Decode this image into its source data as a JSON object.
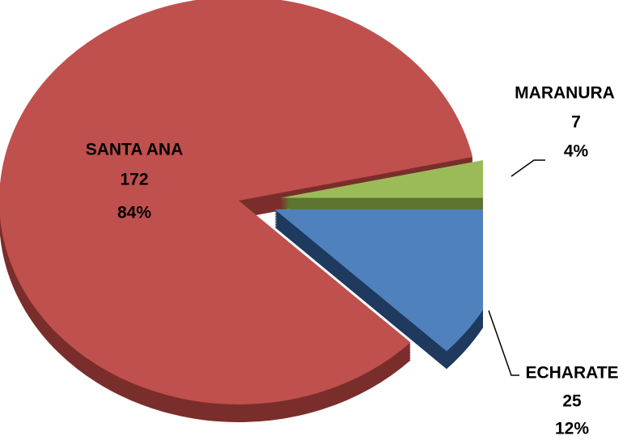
{
  "chart_data": {
    "type": "pie",
    "categories": [
      "SANTA ANA",
      "MARANURA",
      "ECHARATE"
    ],
    "values": [
      172,
      7,
      25
    ],
    "percentages": [
      84,
      4,
      12
    ],
    "percentage_labels": [
      "84%",
      "4%",
      "12%"
    ],
    "colors": [
      "#c0504d",
      "#9bbb59",
      "#4f81bd"
    ],
    "side_colors": [
      "#7a2e2c",
      "#5e7532",
      "#1f3a5e"
    ]
  }
}
